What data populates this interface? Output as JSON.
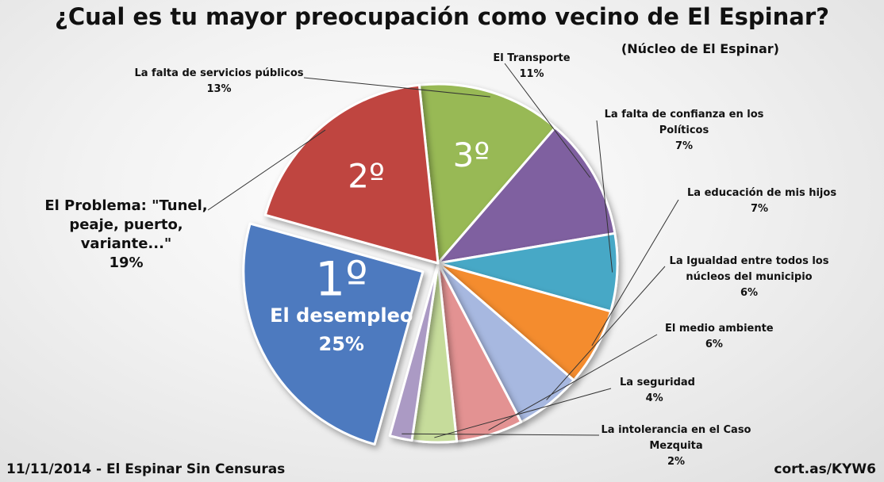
{
  "title": "¿Cual es tu mayor preocupación como vecino de El Espinar?",
  "subtitle": "(Núcleo de El Espinar)",
  "footer_left": "11/11/2014 - El Espinar Sin Censuras",
  "footer_right": "cort.as/KYW6",
  "chart_data": {
    "type": "pie",
    "title": "¿Cual es tu mayor preocupación como vecino de El Espinar?",
    "subtitle": "(Núcleo de El Espinar)",
    "slices": [
      {
        "label": [
          "La falta de servicios públicos"
        ],
        "value": 13,
        "value_label": "13%",
        "color": "#98b954",
        "rank": "3º"
      },
      {
        "label": [
          "El Transporte"
        ],
        "value": 11,
        "value_label": "11%",
        "color": "#7f60a0"
      },
      {
        "label": [
          "La falta de confianza  en los",
          "Políticos"
        ],
        "value": 7,
        "value_label": "7%",
        "color": "#46a8c6"
      },
      {
        "label": [
          "La educación de mis hijos"
        ],
        "value": 7,
        "value_label": "7%",
        "color": "#f48c2f"
      },
      {
        "label": [
          "La Igualdad  entre todos los",
          "núcleos del municipio"
        ],
        "value": 6,
        "value_label": "6%",
        "color": "#a7b8e0"
      },
      {
        "label": [
          "El medio ambiente"
        ],
        "value": 6,
        "value_label": "6%",
        "color": "#e39292"
      },
      {
        "label": [
          "La seguridad"
        ],
        "value": 4,
        "value_label": "4%",
        "color": "#c6dc9b"
      },
      {
        "label": [
          "La intolerancia  en el Caso",
          "Mezquita"
        ],
        "value": 2,
        "value_label": "2%",
        "color": "#ab9ac4"
      },
      {
        "label": [
          "El desempleo"
        ],
        "value": 25,
        "value_label": "25%",
        "color": "#4d7abf",
        "rank": "1º",
        "exploded": true
      },
      {
        "label": [
          "El Problema: \"Tunel,",
          "peaje, puerto,",
          "variante...\""
        ],
        "value": 19,
        "value_label": "19%",
        "color": "#bf4441",
        "rank": "2º"
      }
    ]
  }
}
